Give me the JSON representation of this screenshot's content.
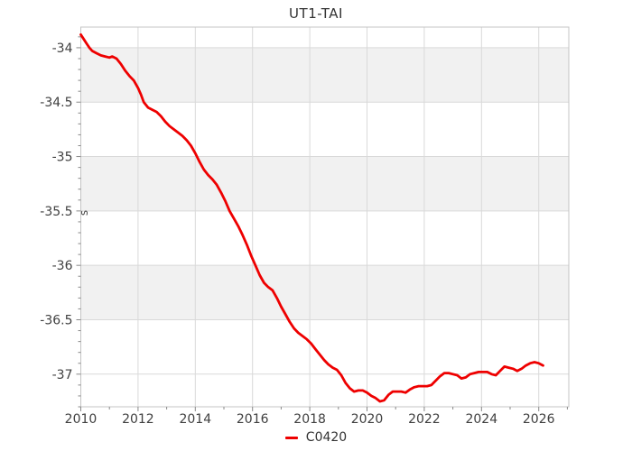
{
  "title": "UT1-TAI",
  "colors": {
    "line": "#ee0000",
    "grid": "#d9d9d9",
    "band": "#f1f1f1",
    "axis": "#c4c4c4",
    "tick": "#888888",
    "label": "#404040",
    "title": "#333333",
    "background": "#ffffff"
  },
  "chart_data": {
    "type": "line",
    "title": "UT1-TAI",
    "xlabel": "",
    "ylabel": "s",
    "xlim": [
      2010,
      2027.05
    ],
    "ylim": [
      -37.3,
      -33.81
    ],
    "grid": true,
    "x_major_ticks": [
      2010,
      2012,
      2014,
      2016,
      2018,
      2020,
      2022,
      2024,
      2026
    ],
    "x_tick_labels": [
      "2010",
      "2012",
      "2014",
      "2016",
      "2018",
      "2020",
      "2022",
      "2024",
      "2026"
    ],
    "x_minor_ticks": [
      2011,
      2013,
      2015,
      2017,
      2019,
      2021,
      2023,
      2025,
      2027
    ],
    "y_major_ticks": [
      -34,
      -34.5,
      -35,
      -35.5,
      -36,
      -36.5,
      -37
    ],
    "y_tick_labels": [
      "-34",
      "-34.5",
      "-35",
      "-35.5",
      "-36",
      "-36.5",
      "-37"
    ],
    "y_minor_tick_step": 0.1,
    "background_bands": {
      "color": "#f1f1f1",
      "ranges": [
        [
          -34.5,
          -34
        ],
        [
          -35.5,
          -35
        ],
        [
          -36.5,
          -36
        ]
      ]
    },
    "legend": {
      "position": "bottom-center",
      "entries": [
        {
          "label": "C0420",
          "color": "#ee0000"
        }
      ]
    },
    "series": [
      {
        "name": "C0420",
        "color": "#ee0000",
        "x": [
          2010.0,
          2010.1,
          2010.2,
          2010.3,
          2010.4,
          2010.55,
          2010.7,
          2010.85,
          2011.0,
          2011.1,
          2011.25,
          2011.4,
          2011.55,
          2011.7,
          2011.85,
          2012.0,
          2012.1,
          2012.2,
          2012.35,
          2012.5,
          2012.65,
          2012.8,
          2012.95,
          2013.1,
          2013.25,
          2013.4,
          2013.55,
          2013.7,
          2013.85,
          2014.0,
          2014.15,
          2014.3,
          2014.45,
          2014.6,
          2014.75,
          2014.9,
          2015.05,
          2015.2,
          2015.35,
          2015.5,
          2015.65,
          2015.8,
          2015.95,
          2016.1,
          2016.25,
          2016.4,
          2016.55,
          2016.7,
          2016.85,
          2017.0,
          2017.15,
          2017.3,
          2017.45,
          2017.6,
          2017.75,
          2017.9,
          2018.05,
          2018.2,
          2018.35,
          2018.5,
          2018.65,
          2018.8,
          2018.95,
          2019.1,
          2019.25,
          2019.4,
          2019.55,
          2019.7,
          2019.85,
          2020.0,
          2020.15,
          2020.3,
          2020.45,
          2020.6,
          2020.75,
          2020.9,
          2021.05,
          2021.2,
          2021.35,
          2021.5,
          2021.65,
          2021.8,
          2021.95,
          2022.1,
          2022.25,
          2022.4,
          2022.55,
          2022.7,
          2022.85,
          2023.0,
          2023.15,
          2023.3,
          2023.45,
          2023.6,
          2023.75,
          2023.9,
          2024.05,
          2024.2,
          2024.35,
          2024.5,
          2024.65,
          2024.8,
          2024.95,
          2025.1,
          2025.25,
          2025.4,
          2025.55,
          2025.7,
          2025.85,
          2026.0,
          2026.15
        ],
        "y": [
          -33.88,
          -33.92,
          -33.96,
          -34.0,
          -34.03,
          -34.05,
          -34.07,
          -34.08,
          -34.09,
          -34.08,
          -34.1,
          -34.15,
          -34.21,
          -34.26,
          -34.3,
          -34.37,
          -34.43,
          -34.5,
          -34.55,
          -34.57,
          -34.59,
          -34.63,
          -34.68,
          -34.72,
          -34.75,
          -34.78,
          -34.81,
          -34.85,
          -34.9,
          -34.97,
          -35.05,
          -35.12,
          -35.17,
          -35.21,
          -35.26,
          -35.33,
          -35.41,
          -35.5,
          -35.57,
          -35.64,
          -35.72,
          -35.81,
          -35.91,
          -36.0,
          -36.09,
          -36.16,
          -36.2,
          -36.23,
          -36.3,
          -36.38,
          -36.45,
          -36.52,
          -36.58,
          -36.62,
          -36.65,
          -36.68,
          -36.72,
          -36.77,
          -36.82,
          -36.87,
          -36.91,
          -36.94,
          -36.96,
          -37.01,
          -37.08,
          -37.13,
          -37.16,
          -37.15,
          -37.15,
          -37.17,
          -37.2,
          -37.22,
          -37.25,
          -37.24,
          -37.19,
          -37.16,
          -37.16,
          -37.16,
          -37.17,
          -37.14,
          -37.12,
          -37.11,
          -37.11,
          -37.11,
          -37.1,
          -37.06,
          -37.02,
          -36.99,
          -36.99,
          -37.0,
          -37.01,
          -37.04,
          -37.03,
          -37.0,
          -36.99,
          -36.98,
          -36.98,
          -36.98,
          -37.0,
          -37.01,
          -36.97,
          -36.93,
          -36.94,
          -36.95,
          -36.97,
          -36.95,
          -36.92,
          -36.9,
          -36.89,
          -36.9,
          -36.92
        ]
      }
    ]
  }
}
